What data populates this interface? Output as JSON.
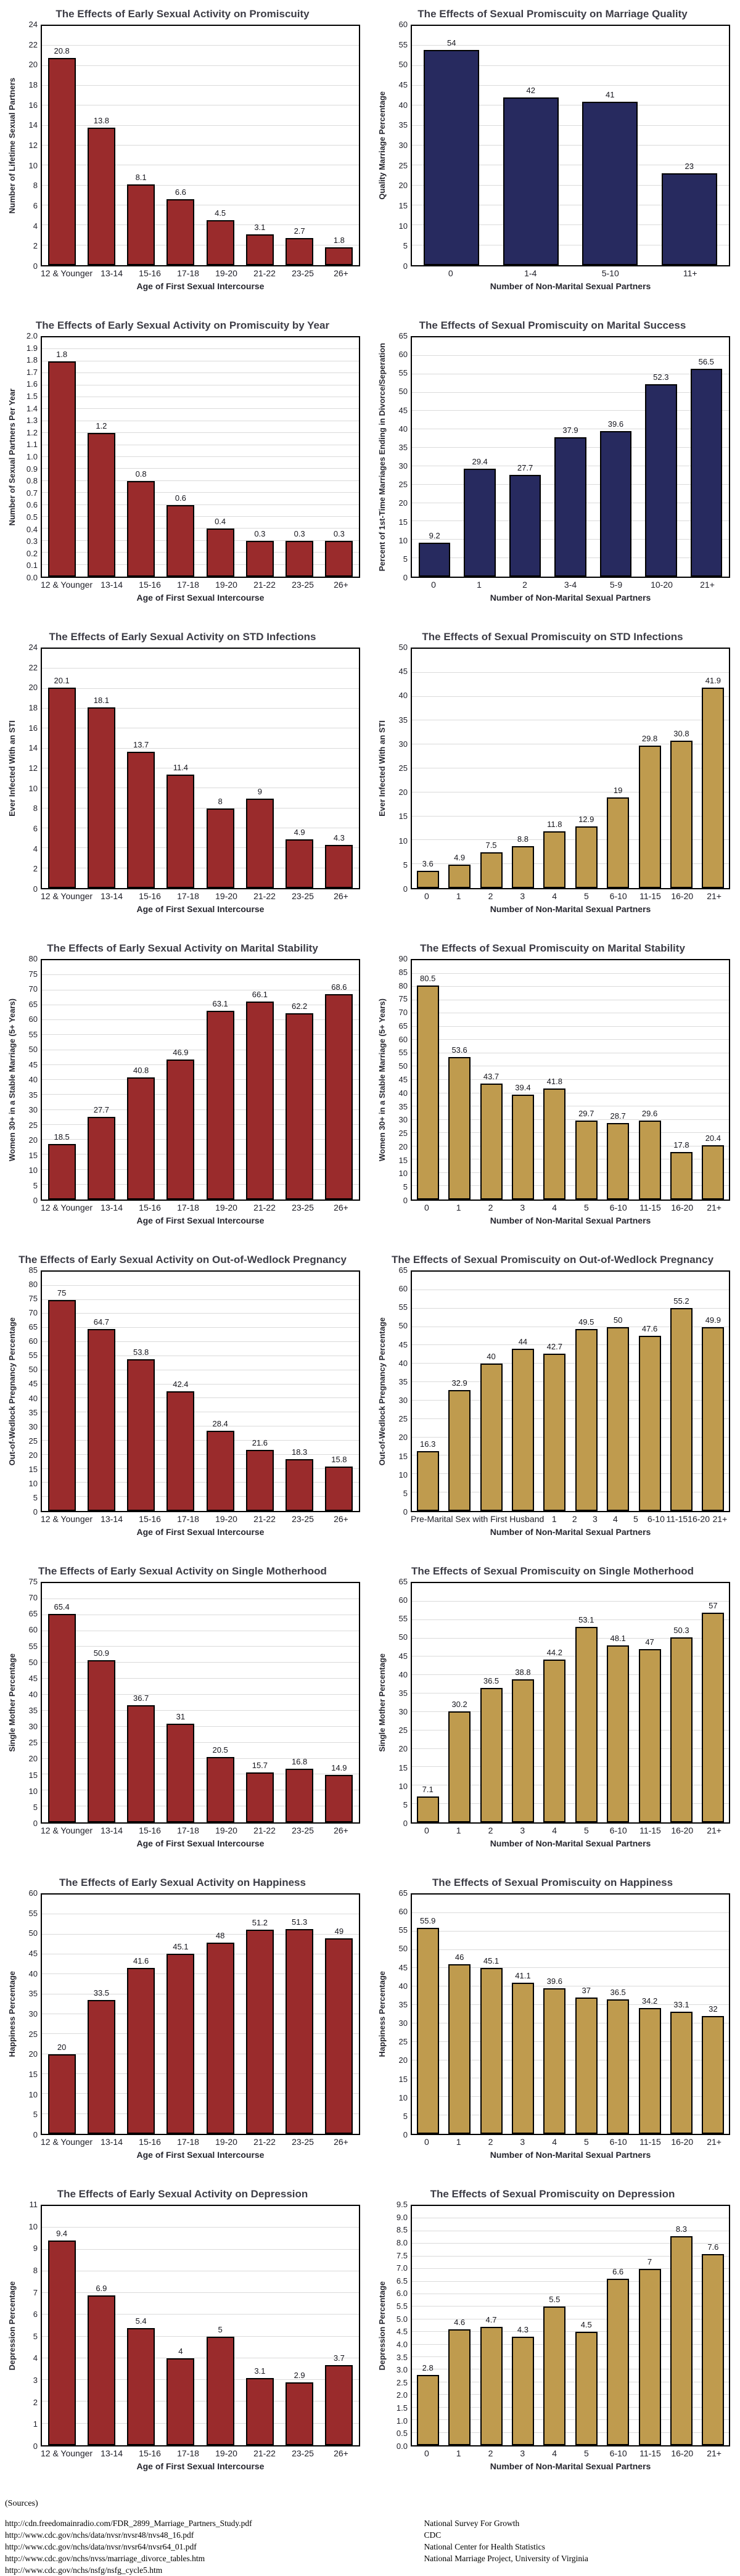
{
  "page": {
    "background": "#ffffff"
  },
  "colors": {
    "early_red": "#9a2b2c",
    "navy": "#272a5f",
    "gold": "#bf9b4e",
    "gridline": "#dadada",
    "bar_border": "#000000",
    "title_text": "#3d3d46"
  },
  "sources": {
    "heading": "(Sources)",
    "rows": [
      {
        "url": "http://cdn.freedomainradio.com/FDR_2899_Marriage_Partners_Study.pdf",
        "org": "National Survey For Growth"
      },
      {
        "url": "http://www.cdc.gov/nchs/data/nvsr/nvsr48/nvs48_16.pdf",
        "org": "CDC"
      },
      {
        "url": "http://www.cdc.gov/nchs/data/nvsr/nvsr64/nvsr64_01.pdf",
        "org": "National Center for Health Statistics"
      },
      {
        "url": "http://www.cdc.gov/nchs/nvss/marriage_divorce_tables.htm",
        "org": "National Marriage Project, University of Virginia"
      },
      {
        "url": "http://www.cdc.gov/nchs/nsfg/nsfg_cycle5.htm",
        "org": ""
      }
    ]
  },
  "chart_data": [
    {
      "type": "bar",
      "title": "The Effects of Early Sexual Activity on Promiscuity",
      "ylabel": "Number of Lifetime Sexual Partners",
      "xlabel": "Age of First Sexual Intercourse",
      "categories": [
        "12 & Younger",
        "13-14",
        "15-16",
        "17-18",
        "19-20",
        "21-22",
        "23-25",
        "26+"
      ],
      "values": [
        20.8,
        13.8,
        8.1,
        6.6,
        4.5,
        3.1,
        2.7,
        1.8
      ],
      "ymax": 24,
      "ystep": 2,
      "tick_decimals": 0,
      "grid": true,
      "legend": "none",
      "bar_color": "#9a2b2c"
    },
    {
      "type": "bar",
      "title": "The Effects of Sexual Promiscuity on Marriage Quality",
      "ylabel": "Quality Marriage Percentage",
      "xlabel": "Number of Non-Marital Sexual Partners",
      "categories": [
        "0",
        "1-4",
        "5-10",
        "11+"
      ],
      "values": [
        54,
        42,
        41,
        23
      ],
      "ymax": 60,
      "ystep": 5,
      "tick_decimals": 0,
      "grid": true,
      "legend": "none",
      "bar_color": "#272a5f"
    },
    {
      "type": "bar",
      "title": "The Effects of Early Sexual Activity on Promiscuity by Year",
      "ylabel": "Number of Sexual Partners Per Year",
      "xlabel": "Age of First Sexual Intercourse",
      "categories": [
        "12 & Younger",
        "13-14",
        "15-16",
        "17-18",
        "19-20",
        "21-22",
        "23-25",
        "26+"
      ],
      "values": [
        1.8,
        1.2,
        0.8,
        0.6,
        0.4,
        0.3,
        0.3,
        0.3
      ],
      "ymax": 2.0,
      "ystep": 0.1,
      "tick_decimals": 1,
      "grid": true,
      "legend": "none",
      "bar_color": "#9a2b2c"
    },
    {
      "type": "bar",
      "title": "The Effects of Sexual Promiscuity on Marital Success",
      "ylabel": "Percent of 1st-Time Marriages Ending in Divorce/Seperation",
      "xlabel": "Number of Non-Marital Sexual Partners",
      "categories": [
        "0",
        "1",
        "2",
        "3-4",
        "5-9",
        "10-20",
        "21+"
      ],
      "values": [
        9.2,
        29.4,
        27.7,
        37.9,
        39.6,
        52.3,
        56.5
      ],
      "ymax": 65,
      "ystep": 5,
      "tick_decimals": 0,
      "grid": true,
      "legend": "none",
      "bar_color": "#272a5f"
    },
    {
      "type": "bar",
      "title": "The Effects of Early Sexual Activity on STD Infections",
      "ylabel": "Ever Infected With an STI",
      "xlabel": "Age of First Sexual Intercourse",
      "categories": [
        "12 & Younger",
        "13-14",
        "15-16",
        "17-18",
        "19-20",
        "21-22",
        "23-25",
        "26+"
      ],
      "values": [
        20.1,
        18.1,
        13.7,
        11.4,
        8,
        9,
        4.9,
        4.3
      ],
      "ymax": 24,
      "ystep": 2,
      "tick_decimals": 0,
      "grid": true,
      "legend": "none",
      "bar_color": "#9a2b2c"
    },
    {
      "type": "bar",
      "title": "The Effects of Sexual Promiscuity on STD Infections",
      "ylabel": "Ever Infected With an STI",
      "xlabel": "Number of Non-Marital Sexual Partners",
      "categories": [
        "0",
        "1",
        "2",
        "3",
        "4",
        "5",
        "6-10",
        "11-15",
        "16-20",
        "21+"
      ],
      "values": [
        3.6,
        4.9,
        7.5,
        8.8,
        11.8,
        12.9,
        19,
        29.8,
        30.8,
        41.9
      ],
      "ymax": 50,
      "ystep": 5,
      "tick_decimals": 0,
      "grid": true,
      "legend": "none",
      "bar_color": "#bf9b4e"
    },
    {
      "type": "bar",
      "title": "The Effects of Early Sexual Activity on Marital Stability",
      "ylabel": "Women 30+ in a Stable Marriage (5+ Years)",
      "xlabel": "Age of First Sexual Intercourse",
      "categories": [
        "12 & Younger",
        "13-14",
        "15-16",
        "17-18",
        "19-20",
        "21-22",
        "23-25",
        "26+"
      ],
      "values": [
        18.5,
        27.7,
        40.8,
        46.9,
        63.1,
        66.1,
        62.2,
        68.6
      ],
      "ymax": 80,
      "ystep": 5,
      "tick_decimals": 0,
      "grid": true,
      "legend": "none",
      "bar_color": "#9a2b2c"
    },
    {
      "type": "bar",
      "title": "The Effects of Sexual Promiscuity on Marital Stability",
      "ylabel": "Women 30+ in a Stable Marriage (5+ Years)",
      "xlabel": "Number of Non-Marital Sexual Partners",
      "categories": [
        "0",
        "1",
        "2",
        "3",
        "4",
        "5",
        "6-10",
        "11-15",
        "16-20",
        "21+"
      ],
      "values": [
        80.5,
        53.6,
        43.7,
        39.4,
        41.8,
        29.7,
        28.7,
        29.6,
        17.8,
        20.4
      ],
      "ymax": 90,
      "ystep": 5,
      "tick_decimals": 0,
      "grid": true,
      "legend": "none",
      "bar_color": "#bf9b4e"
    },
    {
      "type": "bar",
      "title": "The Effects of Early Sexual Activity on Out-of-Wedlock Pregnancy",
      "ylabel": "Out-of-Wedlock Pregnancy Percentage",
      "xlabel": "Age of First Sexual Intercourse",
      "categories": [
        "12 & Younger",
        "13-14",
        "15-16",
        "17-18",
        "19-20",
        "21-22",
        "23-25",
        "26+"
      ],
      "values": [
        75,
        64.7,
        53.8,
        42.4,
        28.4,
        21.6,
        18.3,
        15.8
      ],
      "ymax": 85,
      "ystep": 5,
      "tick_decimals": 0,
      "grid": true,
      "legend": "none",
      "bar_color": "#9a2b2c"
    },
    {
      "type": "bar",
      "title": "The Effects of Sexual Promiscuity on Out-of-Wedlock Pregnancy",
      "ylabel": "Out-of-Wedlock Pregnancy Percentage",
      "xlabel": "Number of Non-Marital Sexual Partners",
      "categories": [
        "Pre-Marital Sex with First Husband",
        "1",
        "2",
        "3",
        "4",
        "5",
        "6-10",
        "11-15",
        "16-20",
        "21+"
      ],
      "values": [
        16.3,
        32.9,
        40,
        44,
        42.7,
        49.5,
        50,
        47.6,
        55.2,
        49.9
      ],
      "ymax": 65,
      "ystep": 5,
      "tick_decimals": 0,
      "grid": true,
      "legend": "none",
      "bar_color": "#bf9b4e"
    },
    {
      "type": "bar",
      "title": "The Effects of Early Sexual Activity on Single Motherhood",
      "ylabel": "Single Mother Percentage",
      "xlabel": "Age of First Sexual Intercourse",
      "categories": [
        "12 & Younger",
        "13-14",
        "15-16",
        "17-18",
        "19-20",
        "21-22",
        "23-25",
        "26+"
      ],
      "values": [
        65.4,
        50.9,
        36.7,
        31,
        20.5,
        15.7,
        16.8,
        14.9
      ],
      "ymax": 75,
      "ystep": 5,
      "tick_decimals": 0,
      "grid": true,
      "legend": "none",
      "bar_color": "#9a2b2c"
    },
    {
      "type": "bar",
      "title": "The Effects of Sexual Promiscuity on Single Motherhood",
      "ylabel": "Single Mother Percentage",
      "xlabel": "Number of Non-Marital Sexual Partners",
      "categories": [
        "0",
        "1",
        "2",
        "3",
        "4",
        "5",
        "6-10",
        "11-15",
        "16-20",
        "21+"
      ],
      "values": [
        7.1,
        30.2,
        36.5,
        38.8,
        44.2,
        53.1,
        48.1,
        47,
        50.3,
        57
      ],
      "ymax": 65,
      "ystep": 5,
      "tick_decimals": 0,
      "grid": true,
      "legend": "none",
      "bar_color": "#bf9b4e"
    },
    {
      "type": "bar",
      "title": "The Effects of Early Sexual Activity on Happiness",
      "ylabel": "Happiness Percentage",
      "xlabel": "Age of First Sexual Intercourse",
      "categories": [
        "12 & Younger",
        "13-14",
        "15-16",
        "17-18",
        "19-20",
        "21-22",
        "23-25",
        "26+"
      ],
      "values": [
        20,
        33.5,
        41.6,
        45.1,
        48,
        51.2,
        51.3,
        49
      ],
      "ymax": 60,
      "ystep": 5,
      "tick_decimals": 0,
      "grid": true,
      "legend": "none",
      "bar_color": "#9a2b2c"
    },
    {
      "type": "bar",
      "title": "The Effects of Sexual Promiscuity on Happiness",
      "ylabel": "Happiness Percentage",
      "xlabel": "Number of Non-Marital Sexual Partners",
      "categories": [
        "0",
        "1",
        "2",
        "3",
        "4",
        "5",
        "6-10",
        "11-15",
        "16-20",
        "21+"
      ],
      "values": [
        55.9,
        46,
        45.1,
        41.1,
        39.6,
        37,
        36.5,
        34.2,
        33.1,
        32
      ],
      "ymax": 65,
      "ystep": 5,
      "tick_decimals": 0,
      "grid": true,
      "legend": "none",
      "bar_color": "#bf9b4e"
    },
    {
      "type": "bar",
      "title": "The Effects of Early Sexual Activity on Depression",
      "ylabel": "Depression Percentage",
      "xlabel": "Age of First Sexual Intercourse",
      "categories": [
        "12 & Younger",
        "13-14",
        "15-16",
        "17-18",
        "19-20",
        "21-22",
        "23-25",
        "26+"
      ],
      "values": [
        9.4,
        6.9,
        5.4,
        4,
        5,
        3.1,
        2.9,
        3.7
      ],
      "ymax": 11,
      "ystep": 1,
      "tick_decimals": 0,
      "grid": true,
      "legend": "none",
      "bar_color": "#9a2b2c"
    },
    {
      "type": "bar",
      "title": "The Effects of Sexual Promiscuity on Depression",
      "ylabel": "Depression Percentage",
      "xlabel": "Number of Non-Marital Sexual Partners",
      "categories": [
        "0",
        "1",
        "2",
        "3",
        "4",
        "5",
        "6-10",
        "11-15",
        "16-20",
        "21+"
      ],
      "values": [
        2.8,
        4.6,
        4.7,
        4.3,
        5.5,
        4.5,
        6.6,
        7,
        8.3,
        7.6
      ],
      "ymax": 9.5,
      "ystep": 0.5,
      "tick_decimals": 1,
      "grid": true,
      "legend": "none",
      "bar_color": "#bf9b4e"
    }
  ]
}
